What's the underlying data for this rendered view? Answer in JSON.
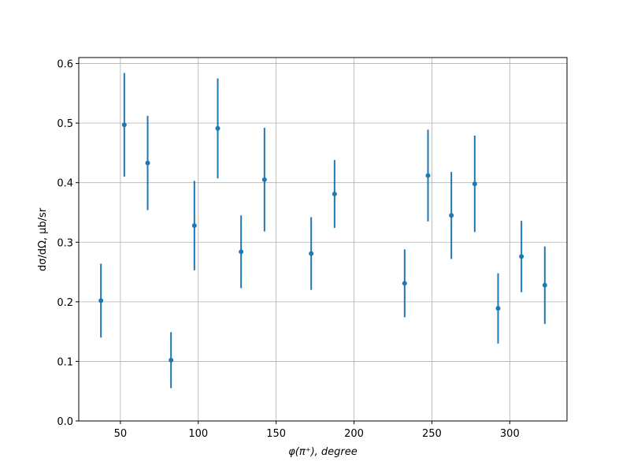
{
  "chart_data": {
    "type": "errorbar",
    "xlabel": "φ(π⁺), degree",
    "ylabel": "dσ/dΩ, μb/sr",
    "x": [
      37.5,
      52.5,
      67.5,
      82.5,
      97.5,
      112.5,
      127.5,
      142.5,
      172.5,
      187.5,
      232.5,
      247.5,
      262.5,
      277.5,
      292.5,
      307.5,
      322.5
    ],
    "values": [
      0.202,
      0.497,
      0.433,
      0.102,
      0.328,
      0.491,
      0.284,
      0.405,
      0.281,
      0.381,
      0.231,
      0.412,
      0.345,
      0.398,
      0.189,
      0.276,
      0.228
    ],
    "errors": [
      0.062,
      0.087,
      0.079,
      0.047,
      0.075,
      0.084,
      0.061,
      0.087,
      0.061,
      0.057,
      0.057,
      0.077,
      0.073,
      0.081,
      0.059,
      0.06,
      0.065
    ],
    "color": "#1f77b4",
    "xlim": [
      23.25,
      336.75
    ],
    "xticks": [
      50,
      100,
      150,
      200,
      250,
      300
    ],
    "ylim": [
      0,
      0.61
    ],
    "yticks": [
      {
        "value": 0,
        "label": "0.0"
      },
      0.1,
      0.2,
      0.3,
      0.4,
      0.5,
      0.6
    ],
    "grid": true
  }
}
